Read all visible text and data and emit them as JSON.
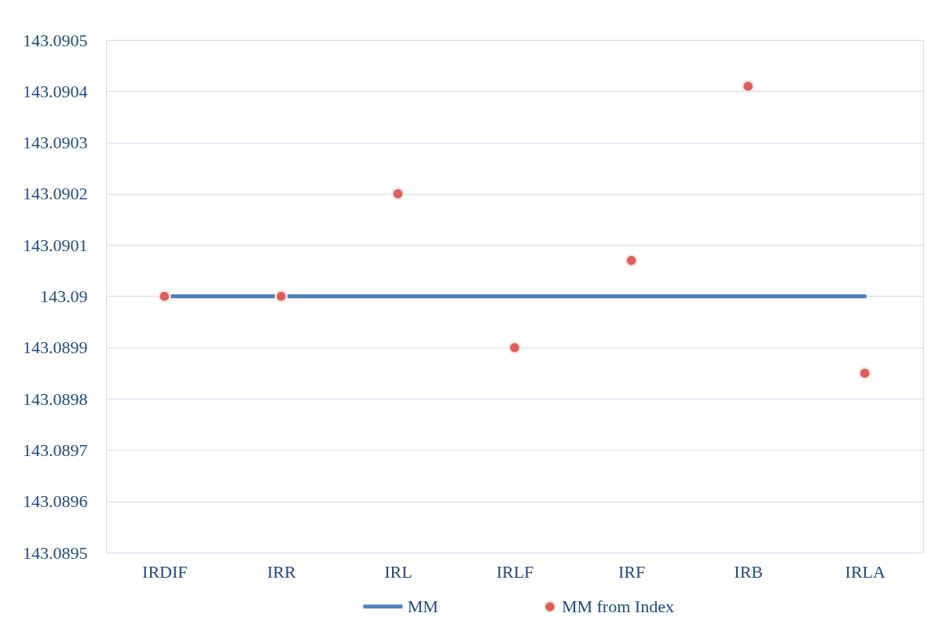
{
  "chart_data": {
    "type": "line",
    "categories": [
      "IRDIF",
      "IRR",
      "IRL",
      "IRLF",
      "IRF",
      "IRB",
      "IRLA"
    ],
    "series": [
      {
        "name": "MM",
        "color": "#4f81bd",
        "marker": "none",
        "line_style": "solid",
        "values": [
          143.09,
          143.09,
          143.09,
          143.09,
          143.09,
          143.09,
          143.09
        ]
      },
      {
        "name": "MM from Index",
        "type": "scatter",
        "color": "#e05c5c",
        "marker": "circle",
        "values": [
          143.09,
          143.09,
          143.0902,
          143.0899,
          143.09007,
          143.09041,
          143.08985
        ]
      }
    ],
    "ylim": [
      143.0895,
      143.0905
    ],
    "yticks": [
      143.0895,
      143.0896,
      143.0897,
      143.0898,
      143.0899,
      143.09,
      143.0901,
      143.0902,
      143.0903,
      143.0904,
      143.0905
    ],
    "grid": "y",
    "legend": "bottom"
  }
}
